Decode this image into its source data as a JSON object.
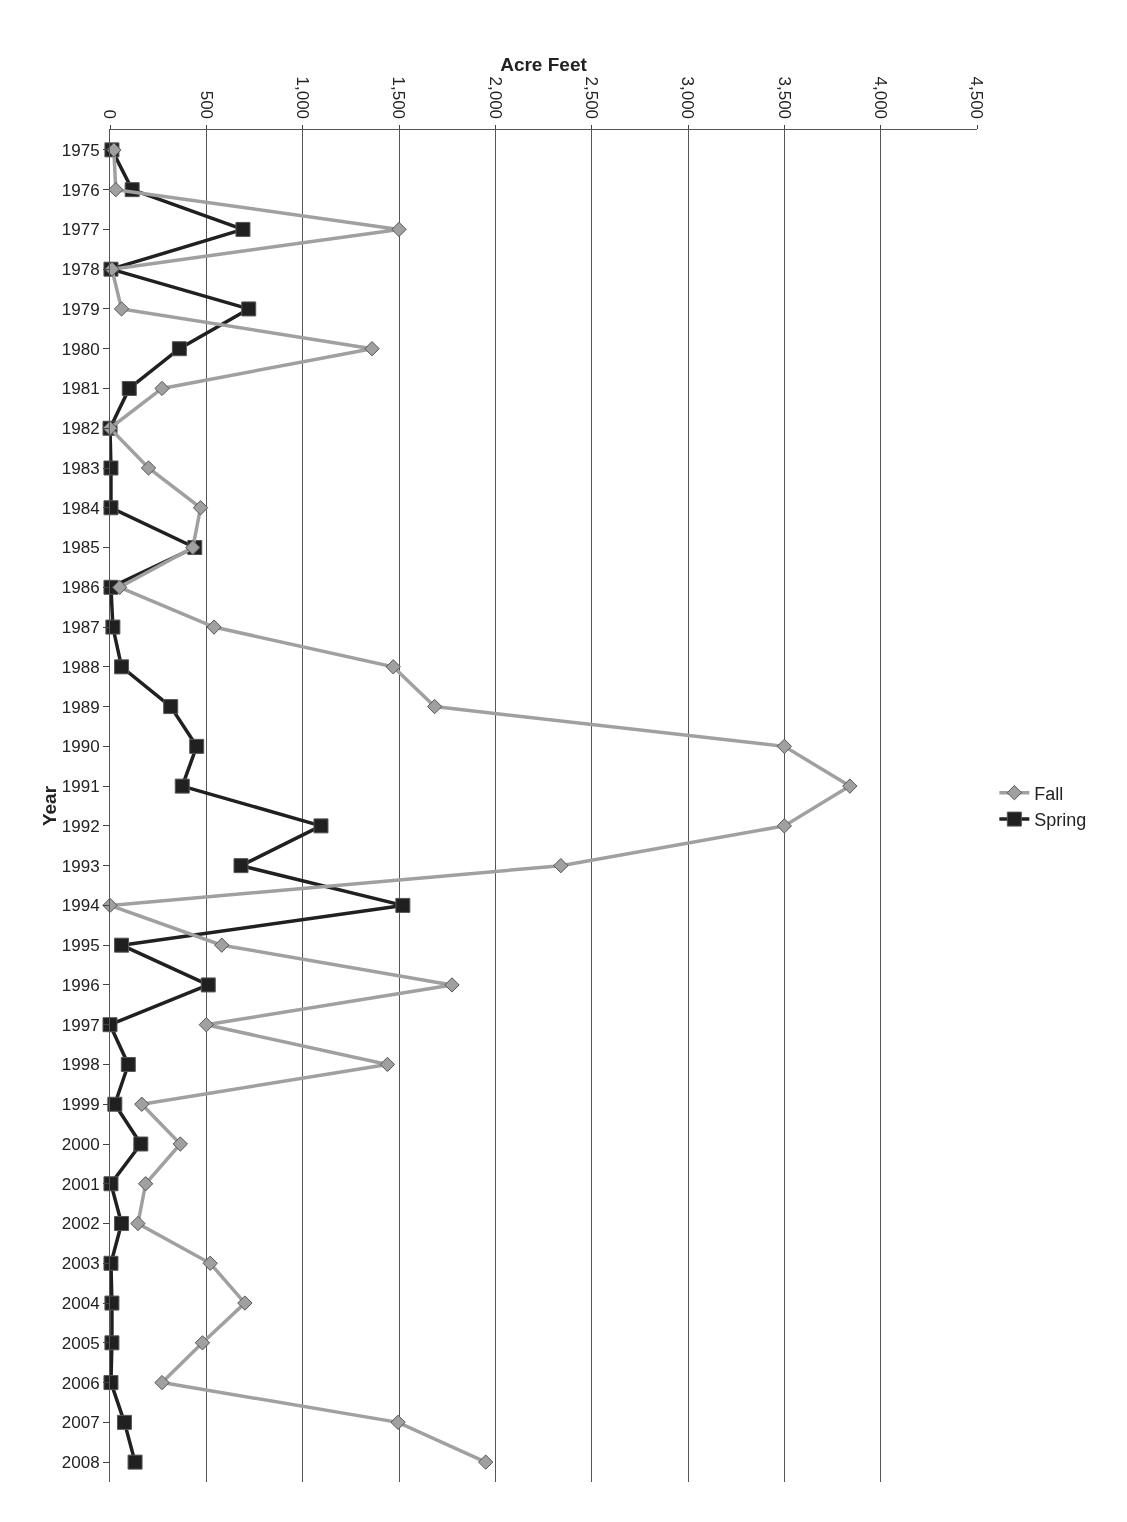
{
  "chart_data": {
    "type": "line",
    "orientation": "horizontal",
    "xlabel": "Acre Feet",
    "ylabel": "Year",
    "categories": [
      "1975",
      "1976",
      "1977",
      "1978",
      "1979",
      "1980",
      "1981",
      "1982",
      "1983",
      "1984",
      "1985",
      "1986",
      "1987",
      "1988",
      "1989",
      "1990",
      "1991",
      "1992",
      "1993",
      "1994",
      "1995",
      "1996",
      "1997",
      "1998",
      "1999",
      "2000",
      "2001",
      "2002",
      "2003",
      "2004",
      "2005",
      "2006",
      "2007",
      "2008"
    ],
    "series": [
      {
        "name": "Fall",
        "color": "#a0a0a0",
        "marker": "diamond",
        "values": [
          20,
          30,
          1500,
          10,
          60,
          1360,
          270,
          0,
          200,
          470,
          430,
          50,
          540,
          1470,
          1685,
          3500,
          3840,
          3500,
          2340,
          0,
          580,
          1775,
          500,
          1440,
          165,
          365,
          185,
          145,
          520,
          700,
          480,
          270,
          1495,
          1950
        ]
      },
      {
        "name": "Spring",
        "color": "#202020",
        "marker": "square",
        "values": [
          10,
          115,
          690,
          5,
          720,
          360,
          100,
          0,
          5,
          5,
          440,
          5,
          15,
          60,
          315,
          450,
          375,
          1095,
          680,
          1520,
          60,
          510,
          0,
          95,
          25,
          160,
          5,
          60,
          5,
          10,
          10,
          5,
          75,
          130
        ]
      }
    ],
    "xlim": [
      0,
      4500
    ],
    "xticks": [
      0,
      {
        "value": 500,
        "label": "500"
      },
      {
        "value": 1000,
        "label": "1,000"
      },
      {
        "value": 1500,
        "label": "1,500"
      },
      {
        "value": 2000,
        "label": "2,000"
      },
      {
        "value": 2500,
        "label": "2,500"
      },
      {
        "value": 3000,
        "label": "3,000"
      },
      {
        "value": 3500,
        "label": "3,500"
      },
      {
        "value": 4000,
        "label": "4,000"
      },
      {
        "value": 4500,
        "label": "4,500"
      }
    ],
    "grid": "x",
    "legend": "right",
    "line_style": "solid"
  }
}
